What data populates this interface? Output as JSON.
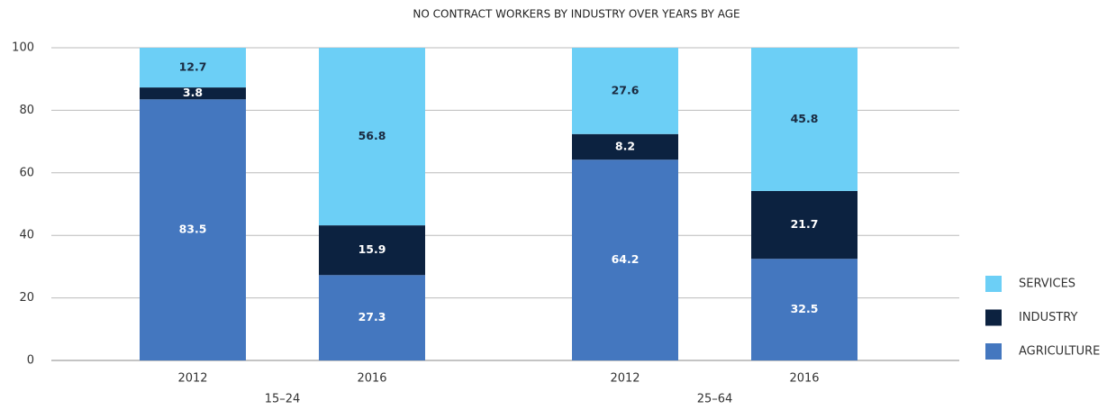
{
  "chart_data": {
    "type": "stacked_bar",
    "title": "NO CONTRACT WORKERS BY INDUSTRY OVER YEARS BY AGE",
    "categories": [
      "2012",
      "2016",
      "2012",
      "2016"
    ],
    "group_labels": [
      "15–24",
      "25–64"
    ],
    "series": [
      {
        "name": "AGRICULTURE",
        "color": "#4477bf",
        "values": [
          83.5,
          27.3,
          64.2,
          32.5
        ]
      },
      {
        "name": "INDUSTRY",
        "color": "#0c2240",
        "values": [
          3.8,
          15.9,
          8.2,
          21.7
        ]
      },
      {
        "name": "SERVICES",
        "color": "#6ccff6",
        "values": [
          12.7,
          56.8,
          27.6,
          45.8
        ]
      }
    ],
    "ylim": [
      0,
      100
    ],
    "yticks": [
      0,
      20,
      40,
      60,
      80,
      100
    ],
    "grid": true,
    "legend": "right"
  }
}
